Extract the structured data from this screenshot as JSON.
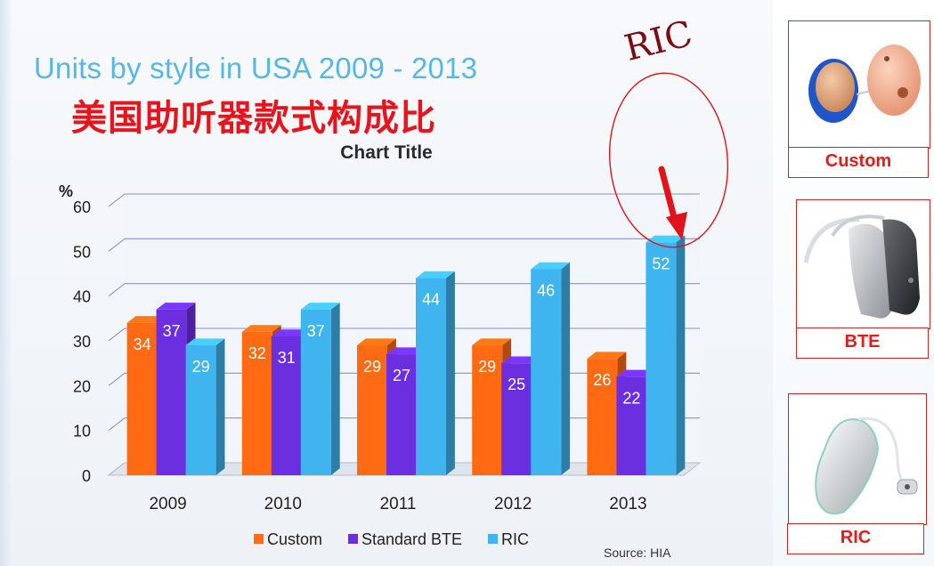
{
  "slide": {
    "title_en": "Units by style in USA    2009 - 2013",
    "title_zh": "美国助听器款式构成比",
    "callout_text": "RIC",
    "source": "Source: HIA"
  },
  "colors": {
    "custom": "#ff6a13",
    "standard_bte": "#6b2fe0",
    "ric": "#3fb4ef",
    "callout_red": "#e3121b"
  },
  "chart_data": {
    "type": "bar",
    "title": "Chart Title",
    "ylabel": "%",
    "xlabel": "",
    "ylim": [
      0,
      60
    ],
    "yticks": [
      0,
      10,
      20,
      30,
      40,
      50,
      60
    ],
    "categories": [
      "2009",
      "2010",
      "2011",
      "2012",
      "2013"
    ],
    "series": [
      {
        "name": "Custom",
        "values": [
          34,
          32,
          29,
          29,
          26
        ]
      },
      {
        "name": "Standard BTE",
        "values": [
          37,
          31,
          27,
          25,
          22
        ]
      },
      {
        "name": "RIC",
        "values": [
          29,
          37,
          44,
          46,
          52
        ]
      }
    ],
    "legend": "bottom",
    "grid": true,
    "style": "3d-clustered-column"
  },
  "sidebar": {
    "cards": [
      {
        "label": "Custom",
        "icon": "custom-hearing-aid-icon"
      },
      {
        "label": "BTE",
        "icon": "bte-hearing-aid-icon"
      },
      {
        "label": "RIC",
        "icon": "ric-hearing-aid-icon"
      }
    ]
  }
}
